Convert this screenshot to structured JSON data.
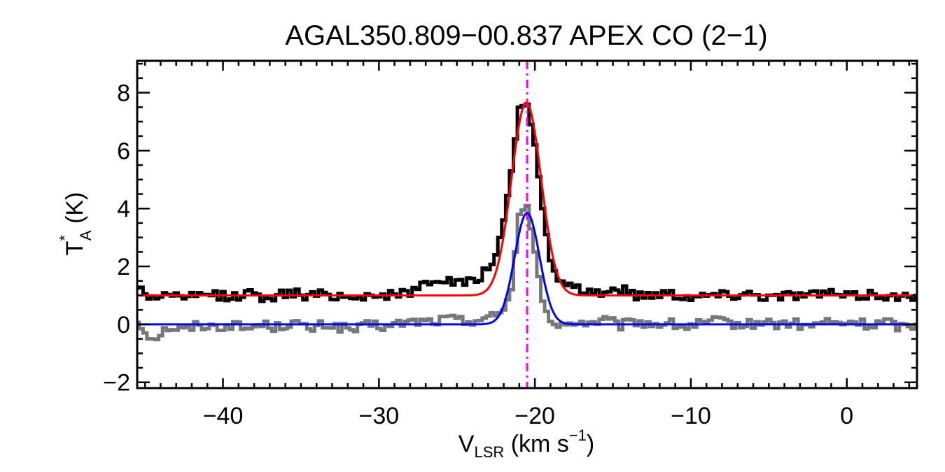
{
  "chart_data": {
    "type": "line",
    "title": "AGAL350.809−00.837  APEX CO (2−1)",
    "xlabel": {
      "main": "V",
      "sub": "LSR",
      "rest": " (km s",
      "sup": "−1",
      "close": ")"
    },
    "ylabel": {
      "main": "T",
      "sup": "*",
      "sub": "A",
      "rest": " (K)"
    },
    "xlim": [
      -45.5,
      4.5
    ],
    "ylim": [
      -2.2,
      9.1
    ],
    "xticks": [
      -40,
      -30,
      -20,
      -10,
      0
    ],
    "xtick_labels": [
      "−40",
      "−30",
      "−20",
      "−10",
      "0"
    ],
    "yticks": [
      -2,
      0,
      2,
      4,
      6,
      8
    ],
    "ytick_labels": [
      "−2",
      "0",
      "2",
      "4",
      "6",
      "8"
    ],
    "vline": {
      "x": -20.5,
      "color": "#ff00ff",
      "style": "dash-dot"
    },
    "series": [
      {
        "role": "observed spectrum",
        "color": "#000000",
        "baseline": 1.0,
        "kind": "step",
        "x": [
          -45.5,
          -44.5,
          -43.5,
          -42.5,
          -41.5,
          -40.5,
          -39.5,
          -38.5,
          -37.5,
          -36.5,
          -35.5,
          -34.5,
          -33.5,
          -32.5,
          -31.5,
          -30.5,
          -29.5,
          -28.5,
          -27.5,
          -26.5,
          -25.5,
          -24.5,
          -23.5,
          -22.5,
          -22.0,
          -21.5,
          -21.0,
          -20.5,
          -20.0,
          -19.5,
          -19.0,
          -18.5,
          -18.0,
          -17.5,
          -16.5,
          -15.5,
          -14.5,
          -13.5,
          -12.5,
          -11.5,
          -10.5,
          -9.5,
          -8.5,
          -7.5,
          -6.5,
          -5.5,
          -4.5,
          -3.5,
          -2.5,
          -1.5,
          -0.5,
          0.5,
          1.5,
          2.5,
          3.5,
          4.5
        ],
        "y": [
          1.3,
          0.9,
          1.1,
          0.85,
          1.0,
          1.05,
          0.9,
          1.1,
          0.95,
          1.0,
          1.1,
          0.95,
          1.05,
          1.0,
          0.9,
          1.05,
          1.0,
          1.05,
          1.25,
          1.6,
          1.5,
          1.4,
          1.6,
          2.4,
          3.6,
          5.3,
          7.5,
          7.6,
          6.2,
          4.0,
          2.2,
          1.5,
          1.3,
          1.2,
          1.15,
          1.1,
          1.25,
          1.0,
          1.05,
          1.1,
          1.0,
          0.95,
          1.05,
          1.0,
          1.1,
          1.0,
          0.95,
          1.05,
          1.0,
          1.1,
          1.0,
          0.95,
          1.05,
          1.0,
          0.9,
          1.0
        ]
      },
      {
        "role": "baseline-subtracted spectrum",
        "color": "#777777",
        "baseline": 0.0,
        "kind": "step",
        "x": [
          -45.5,
          -44.5,
          -43.5,
          -42.5,
          -41.5,
          -40.5,
          -39.5,
          -38.5,
          -37.5,
          -36.5,
          -35.5,
          -34.5,
          -33.5,
          -32.5,
          -31.5,
          -30.5,
          -29.5,
          -28.5,
          -27.5,
          -26.5,
          -25.5,
          -24.5,
          -23.5,
          -22.5,
          -22.0,
          -21.5,
          -21.0,
          -20.5,
          -20.0,
          -19.5,
          -19.0,
          -18.5,
          -18.0,
          -17.5,
          -16.5,
          -15.5,
          -14.5,
          -13.5,
          -12.5,
          -11.5,
          -10.5,
          -9.5,
          -8.5,
          -7.5,
          -6.5,
          -5.5,
          -4.5,
          -3.5,
          -2.5,
          -1.5,
          -0.5,
          0.5,
          1.5,
          2.5,
          3.5,
          4.5
        ],
        "y": [
          0.1,
          -0.5,
          -0.1,
          -0.2,
          0.0,
          -0.1,
          0.0,
          -0.15,
          0.0,
          -0.1,
          0.1,
          -0.2,
          0.0,
          -0.1,
          -0.2,
          0.0,
          -0.1,
          0.05,
          0.1,
          0.1,
          0.2,
          0.1,
          0.2,
          0.3,
          0.5,
          1.2,
          3.8,
          4.1,
          2.5,
          0.8,
          0.1,
          -0.1,
          0.0,
          0.1,
          0.05,
          0.15,
          -0.05,
          0.1,
          0.0,
          0.05,
          -0.1,
          0.0,
          0.1,
          0.05,
          -0.05,
          0.1,
          0.0,
          0.05,
          -0.1,
          0.1,
          0.0,
          0.1,
          -0.05,
          0.1,
          -0.1,
          0.0
        ]
      },
      {
        "role": "gaussian fit",
        "color": "#ff0000",
        "kind": "gaussian",
        "offset": 1.0,
        "amplitude": 6.65,
        "center": -20.55,
        "sigma": 0.95
      },
      {
        "role": "gaussian fit",
        "color": "#0000ff",
        "kind": "gaussian",
        "offset": 0.0,
        "amplitude": 3.85,
        "center": -20.5,
        "sigma": 0.8
      }
    ]
  }
}
